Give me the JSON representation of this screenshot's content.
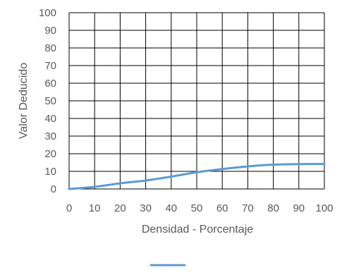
{
  "chart_data": {
    "type": "line",
    "title": "",
    "xlabel": "Densidad - Porcentaje",
    "ylabel": "Valor Deducido",
    "xlim": [
      0,
      100
    ],
    "ylim": [
      0,
      100
    ],
    "x_ticks": [
      0,
      10,
      20,
      30,
      40,
      50,
      60,
      70,
      80,
      90,
      100
    ],
    "y_ticks": [
      0,
      10,
      20,
      30,
      40,
      50,
      60,
      70,
      80,
      90,
      100
    ],
    "grid": true,
    "legend_position": "bottom",
    "series": [
      {
        "name": "",
        "color": "#5b9bd5",
        "x": [
          0,
          10,
          20,
          30,
          40,
          50,
          60,
          70,
          80,
          90,
          100
        ],
        "y": [
          0,
          1.2,
          3.2,
          4.8,
          7,
          9.5,
          11.3,
          12.8,
          13.8,
          14.1,
          14.2
        ]
      }
    ]
  }
}
